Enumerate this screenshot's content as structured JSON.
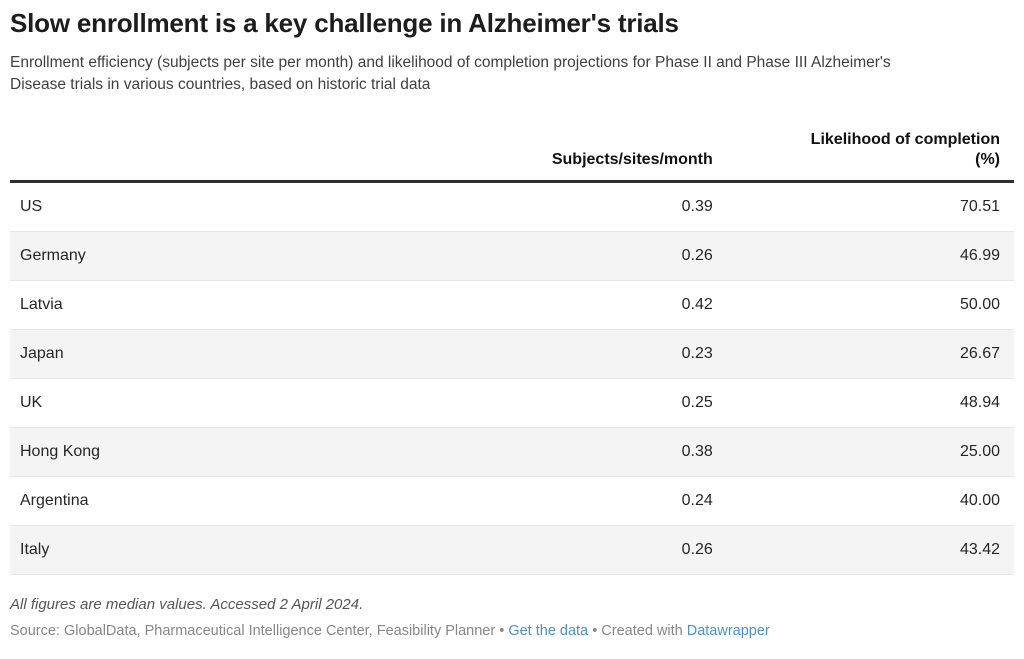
{
  "header": {
    "title": "Slow enrollment is a key challenge in Alzheimer's trials",
    "subtitle": "Enrollment efficiency (subjects per site per month) and likelihood of completion projections for Phase II and Phase III Alzheimer's Disease trials in various countries, based on historic trial data"
  },
  "table": {
    "columns": {
      "country": "",
      "subjects": "Subjects/sites/month",
      "likelihood_line1": "Likelihood of completion",
      "likelihood_line2": "(%)"
    },
    "rows": [
      {
        "country": "US",
        "subjects": "0.39",
        "likelihood": "70.51"
      },
      {
        "country": "Germany",
        "subjects": "0.26",
        "likelihood": "46.99"
      },
      {
        "country": "Latvia",
        "subjects": "0.42",
        "likelihood": "50.00"
      },
      {
        "country": "Japan",
        "subjects": "0.23",
        "likelihood": "26.67"
      },
      {
        "country": "UK",
        "subjects": "0.25",
        "likelihood": "48.94"
      },
      {
        "country": "Hong Kong",
        "subjects": "0.38",
        "likelihood": "25.00"
      },
      {
        "country": "Argentina",
        "subjects": "0.24",
        "likelihood": "40.00"
      },
      {
        "country": "Italy",
        "subjects": "0.26",
        "likelihood": "43.42"
      }
    ]
  },
  "footer": {
    "notes": "All figures are median values. Accessed 2 April 2024.",
    "source_prefix": "Source: GlobalData, Pharmaceutical Intelligence Center, Feasibility Planner",
    "separator": "•",
    "get_data_label": "Get the data",
    "created_with_label": "Created with",
    "datawrapper_label": "Datawrapper"
  },
  "colors": {
    "link_blue": "#4a90d2",
    "stripe": "#f4f4f4",
    "row_divider": "#e6e6e6",
    "header_border": "#2e2e2e"
  },
  "chart_data": {
    "type": "table",
    "title": "Slow enrollment is a key challenge in Alzheimer's trials",
    "subtitle": "Enrollment efficiency (subjects per site per month) and likelihood of completion projections for Phase II and Phase III Alzheimer's Disease trials in various countries, based on historic trial data",
    "columns": [
      "",
      "Subjects/sites/month",
      "Likelihood of completion (%)"
    ],
    "categories": [
      "US",
      "Germany",
      "Latvia",
      "Japan",
      "UK",
      "Hong Kong",
      "Argentina",
      "Italy"
    ],
    "series": [
      {
        "name": "Subjects/sites/month",
        "values": [
          0.39,
          0.26,
          0.42,
          0.23,
          0.25,
          0.38,
          0.24,
          0.26
        ]
      },
      {
        "name": "Likelihood of completion (%)",
        "values": [
          70.51,
          46.99,
          50.0,
          26.67,
          48.94,
          25.0,
          40.0,
          43.42
        ]
      }
    ],
    "notes": "All figures are median values. Accessed 2 April 2024.",
    "source": "GlobalData, Pharmaceutical Intelligence Center, Feasibility Planner",
    "layout_hints": {
      "zebra_striping": true,
      "numeric_columns_right_aligned": true
    }
  }
}
